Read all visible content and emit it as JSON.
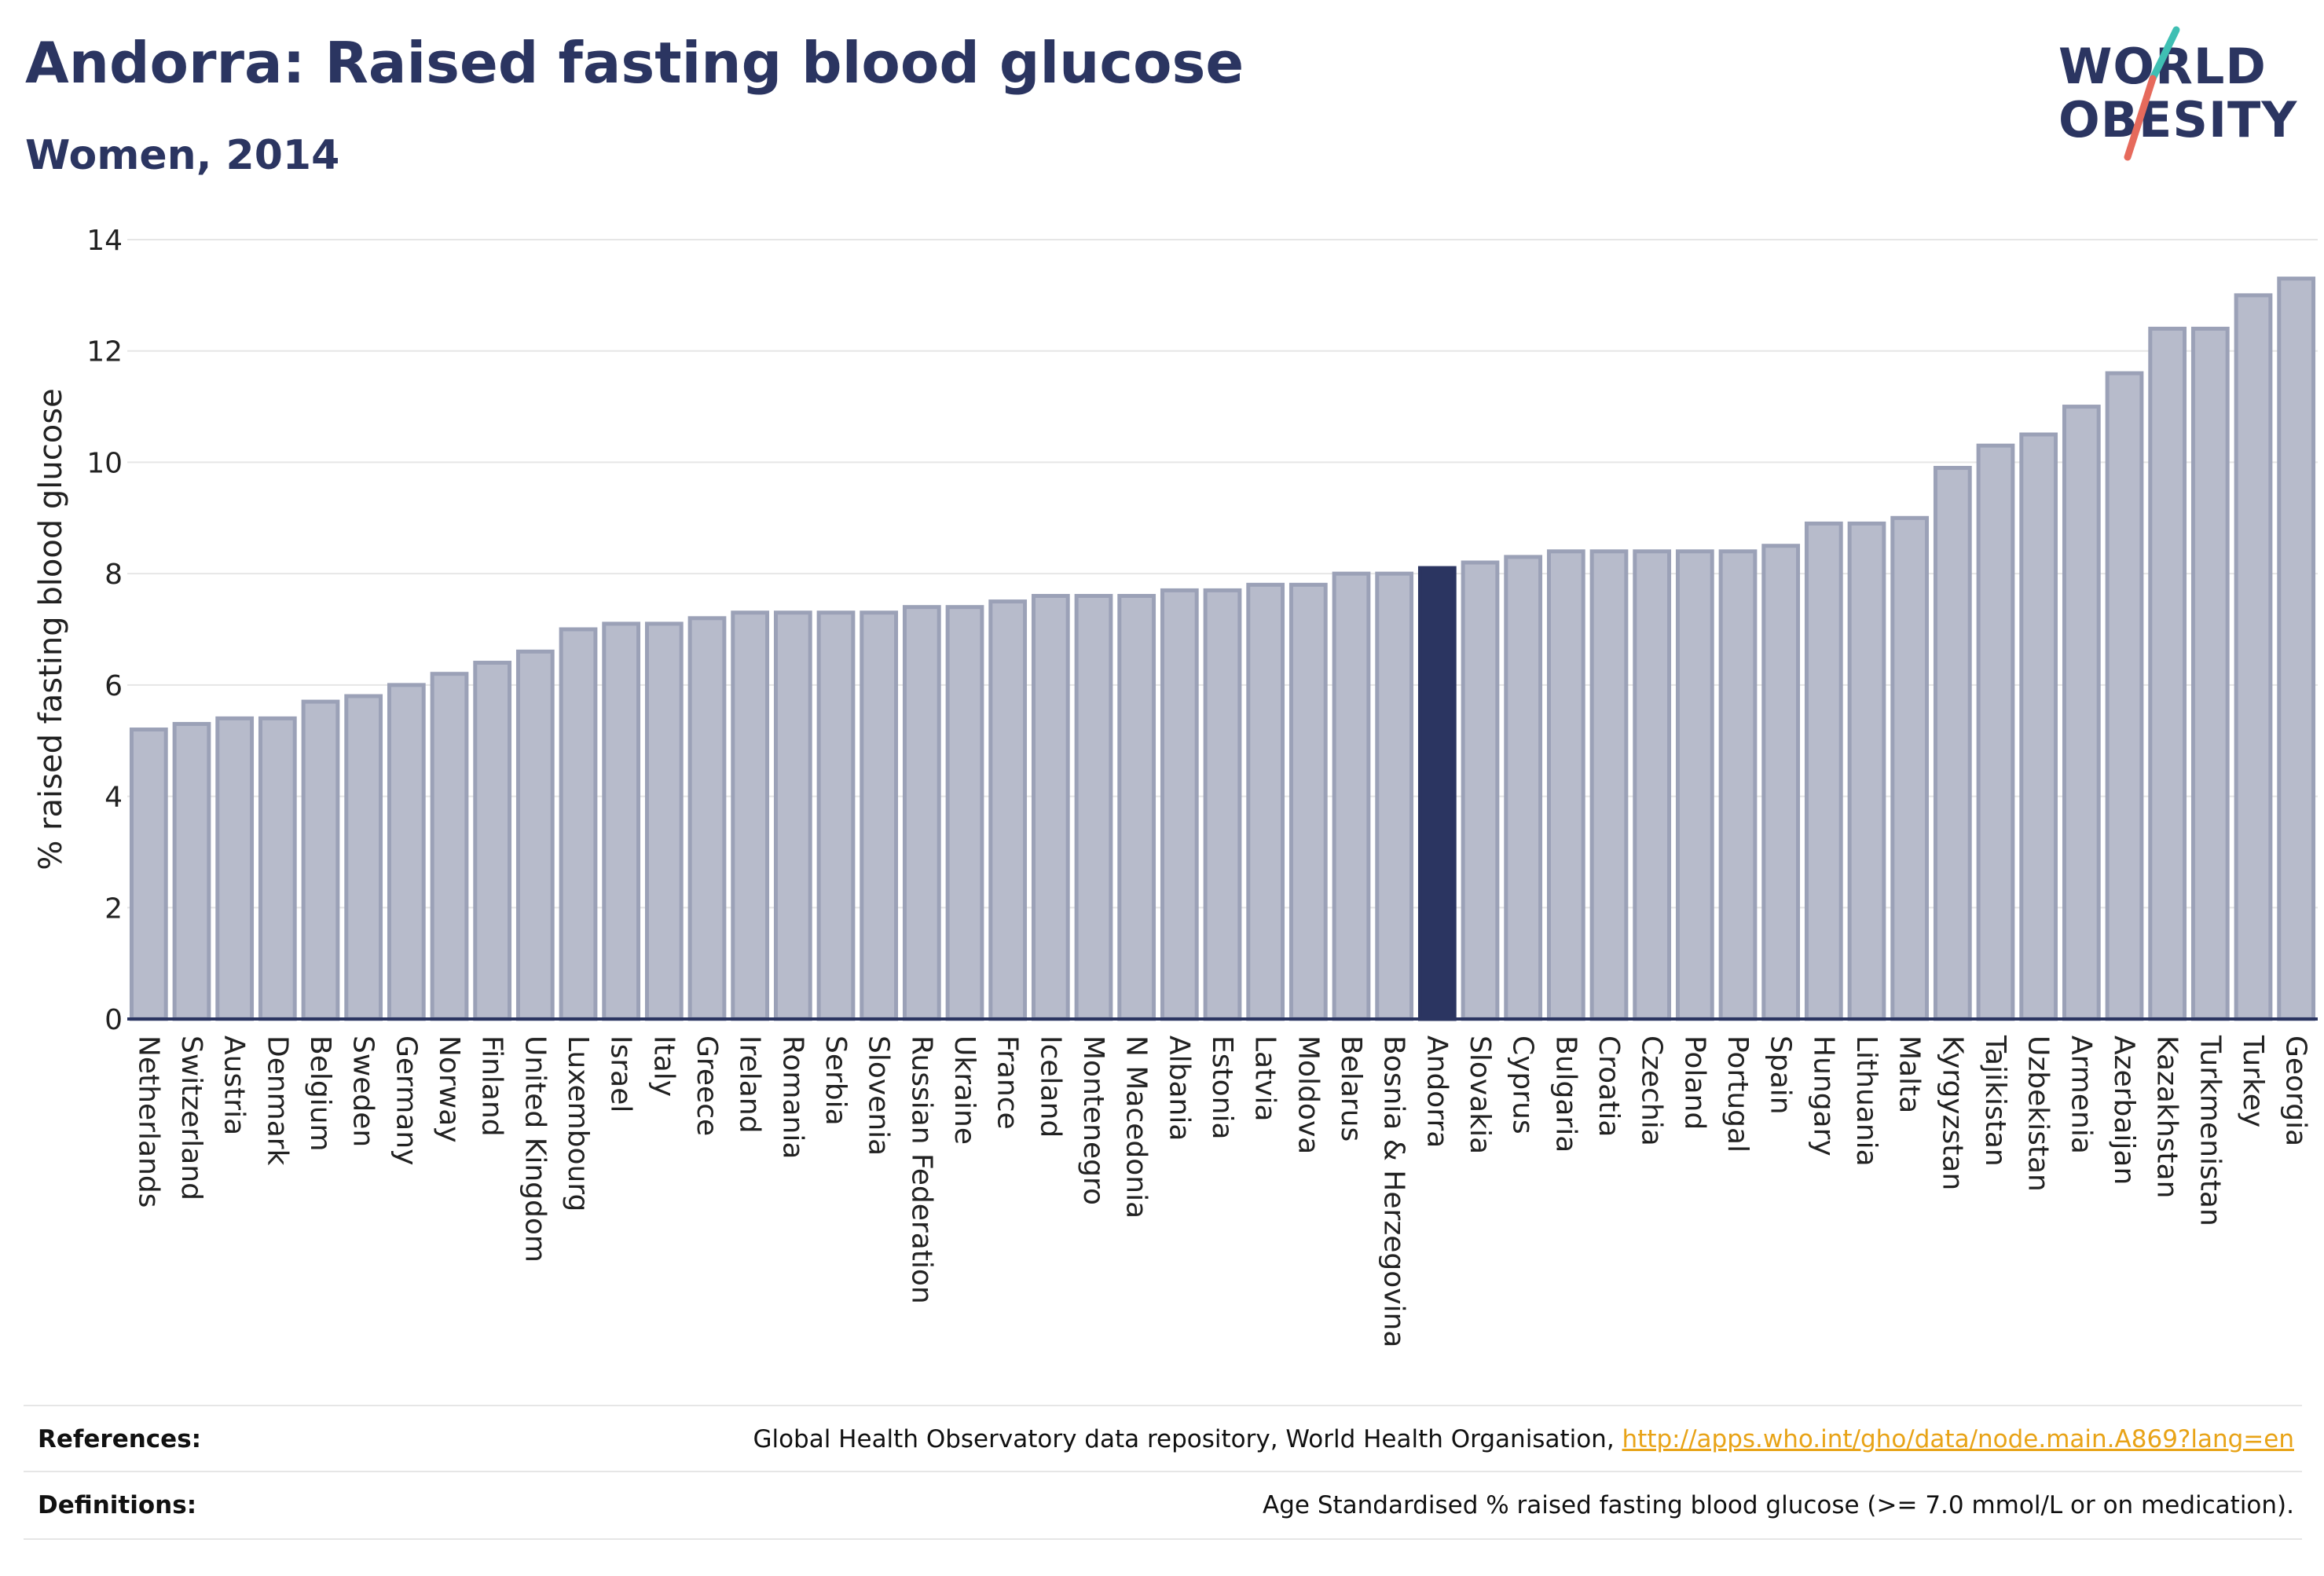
{
  "header": {
    "title": "Andorra: Raised fasting blood glucose",
    "subtitle": "Women, 2014"
  },
  "logo": {
    "line1": "WORLD",
    "line2": "OBESITY",
    "icon": "slash-mark-icon"
  },
  "colors": {
    "bar_fill": "#b7bbcb",
    "bar_stroke": "#9ba1b7",
    "highlight": "#2b3561",
    "grid": "#e6e6e6",
    "axis": "#2b3561",
    "text": "#2b3561",
    "link": "#e8a317",
    "logo_teal": "#3fbfb3",
    "logo_coral": "#e66a5c"
  },
  "chart_data": {
    "type": "bar",
    "title": "Andorra: Raised fasting blood glucose",
    "subtitle": "Women, 2014",
    "xlabel": "",
    "ylabel": "% raised fasting blood glucose",
    "ylim": [
      0,
      14
    ],
    "yticks": [
      0,
      2,
      4,
      6,
      8,
      10,
      12,
      14
    ],
    "grid": true,
    "highlight": "Andorra",
    "categories": [
      "Netherlands",
      "Switzerland",
      "Austria",
      "Denmark",
      "Belgium",
      "Sweden",
      "Germany",
      "Norway",
      "Finland",
      "United Kingdom",
      "Luxembourg",
      "Israel",
      "Italy",
      "Greece",
      "Ireland",
      "Romania",
      "Serbia",
      "Slovenia",
      "Russian Federation",
      "Ukraine",
      "France",
      "Iceland",
      "Montenegro",
      "N Macedonia",
      "Albania",
      "Estonia",
      "Latvia",
      "Moldova",
      "Belarus",
      "Bosnia & Herzegovina",
      "Andorra",
      "Slovakia",
      "Cyprus",
      "Bulgaria",
      "Croatia",
      "Czechia",
      "Poland",
      "Portugal",
      "Spain",
      "Hungary",
      "Lithuania",
      "Malta",
      "Kyrgyzstan",
      "Tajikistan",
      "Uzbekistan",
      "Armenia",
      "Azerbaijan",
      "Kazakhstan",
      "Turkmenistan",
      "Turkey",
      "Georgia"
    ],
    "values": [
      5.2,
      5.3,
      5.4,
      5.4,
      5.7,
      5.8,
      6.0,
      6.2,
      6.4,
      6.6,
      7.0,
      7.1,
      7.1,
      7.2,
      7.3,
      7.3,
      7.3,
      7.3,
      7.4,
      7.4,
      7.5,
      7.6,
      7.6,
      7.6,
      7.7,
      7.7,
      7.8,
      7.8,
      8.0,
      8.0,
      8.1,
      8.2,
      8.3,
      8.4,
      8.4,
      8.4,
      8.4,
      8.4,
      8.5,
      8.9,
      8.9,
      9.0,
      9.9,
      10.3,
      10.5,
      11.0,
      11.6,
      12.4,
      12.4,
      13.0,
      13.3
    ]
  },
  "footer": {
    "references_label": "References:",
    "references_text": "Global Health Observatory data repository, World Health Organisation, ",
    "references_link": "http://apps.who.int/gho/data/node.main.A869?lang=en",
    "definitions_label": "Definitions:",
    "definitions_text": "Age Standardised % raised fasting blood glucose (>= 7.0 mmol/L or on medication)."
  }
}
